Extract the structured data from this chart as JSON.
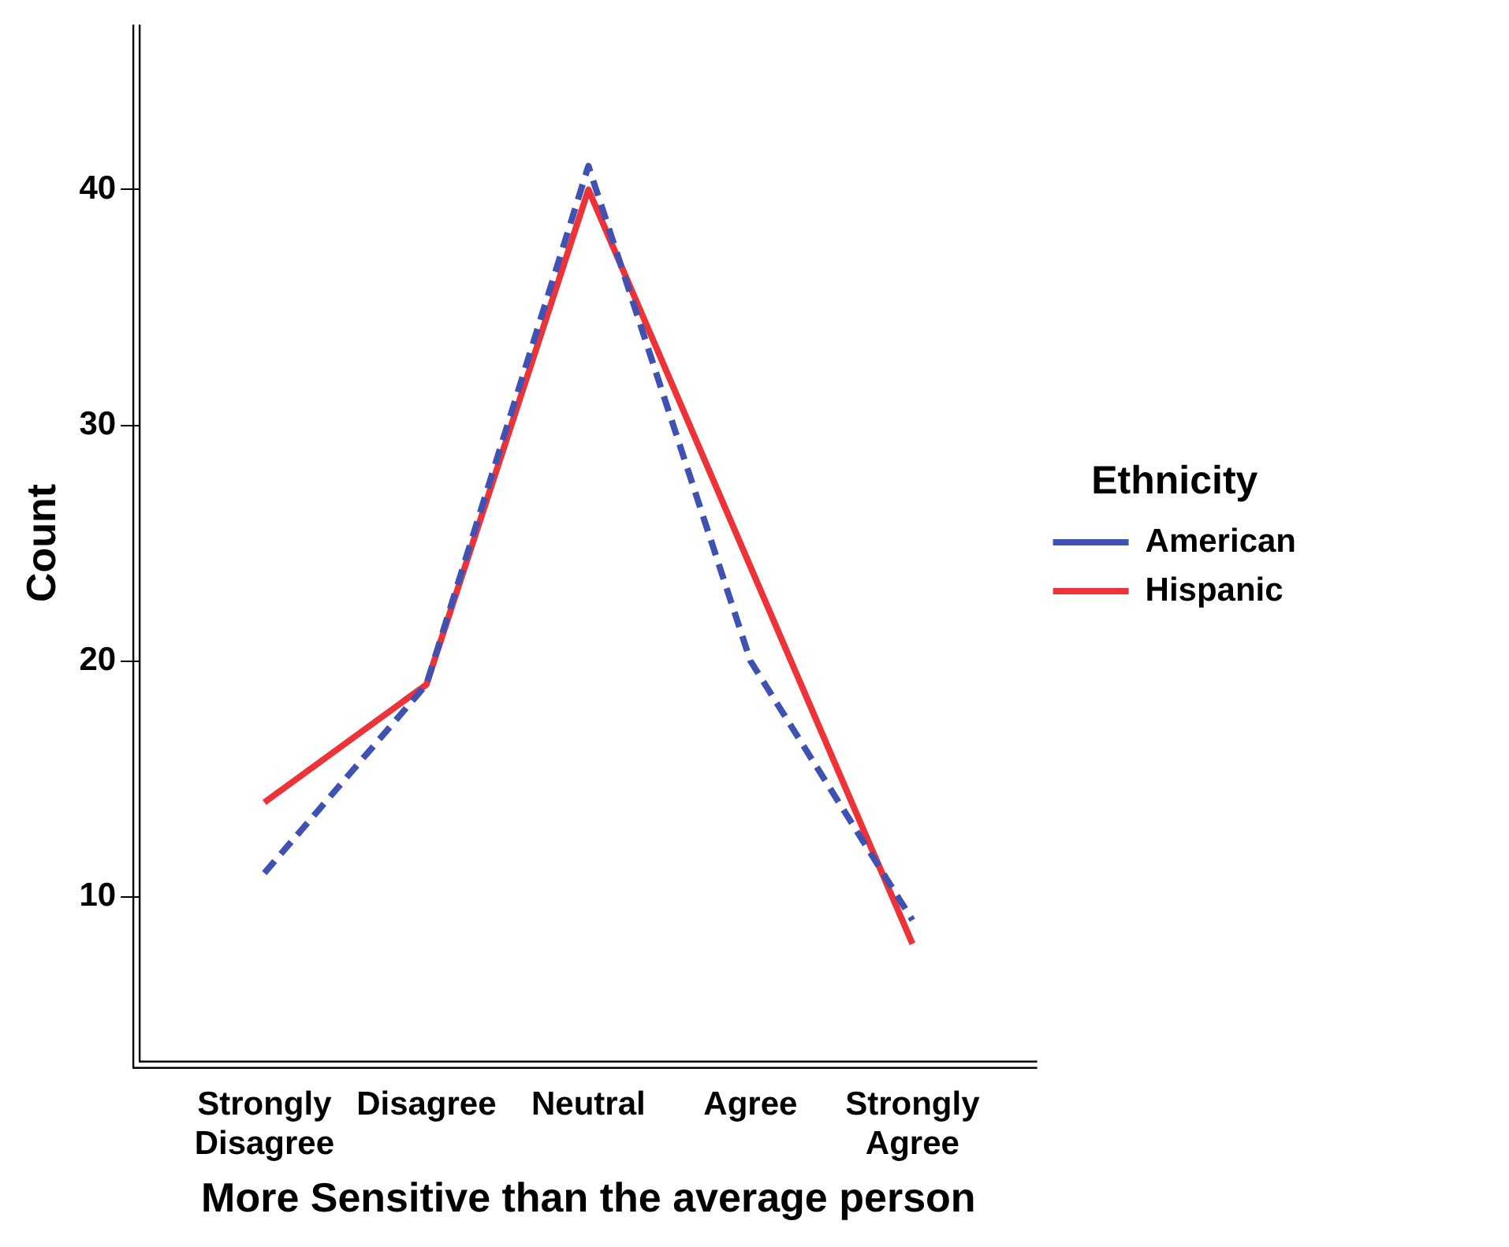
{
  "chart_data": {
    "type": "line",
    "xlabel": "More Sensitive than the average person",
    "ylabel": "Count",
    "legend_title": "Ethnicity",
    "legend": "right",
    "grid": false,
    "marker": "none",
    "categories": [
      "Strongly Disagree",
      "Disagree",
      "Neutral",
      "Agree",
      "Strongly Agree"
    ],
    "ylim": [
      3,
      47
    ],
    "yticks": [
      10,
      20,
      30,
      40
    ],
    "series": [
      {
        "name": "American",
        "color": "#3f51b1",
        "line_style": "dashed",
        "values": [
          11,
          19,
          41,
          20,
          9
        ]
      },
      {
        "name": "Hispanic",
        "color": "#ee3338",
        "line_style": "solid",
        "values": [
          14,
          19,
          40,
          24,
          8
        ]
      }
    ]
  }
}
